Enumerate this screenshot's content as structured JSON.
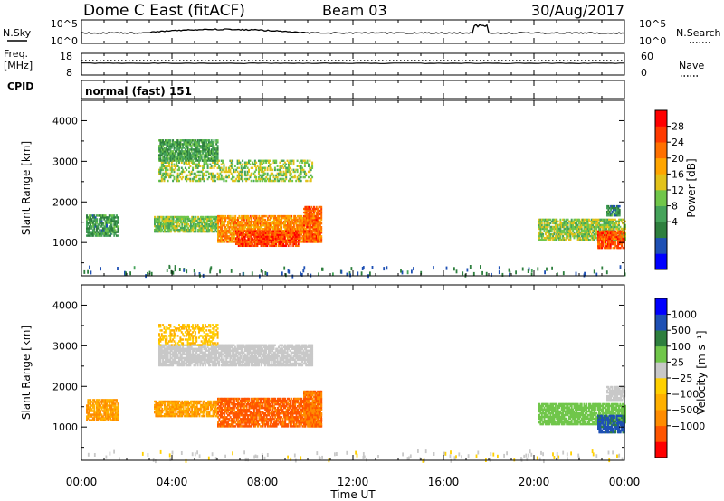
{
  "header": {
    "radar": "Dome C East (fitACF)",
    "beam": "Beam 03",
    "date": "30/Aug/2017"
  },
  "ancillary": {
    "nsky_label": "N.Sky",
    "nsky_ticks": [
      "10^5",
      "10^0"
    ],
    "nsearch_label": "N.Search",
    "nsearch_ticks": [
      "10^5",
      "10^0"
    ],
    "freq_label_1": "Freq.",
    "freq_label_2": "[MHz]",
    "freq_ticks": [
      "18",
      "8"
    ],
    "nave_label": "Nave",
    "nave_ticks": [
      "60",
      "0"
    ],
    "cpid_label": "CPID",
    "cpid_value": "normal (fast) 151"
  },
  "colors": {
    "power_scale": [
      "#0000ff",
      "#1e50b4",
      "#2e7f3e",
      "#45a35a",
      "#70c64a",
      "#e2c21a",
      "#ffa500",
      "#ff7000",
      "#ff3a00",
      "#ff0000"
    ],
    "velocity_scale": [
      "#ff0000",
      "#ff5500",
      "#ff8c00",
      "#ffb000",
      "#ffd000",
      "#c8c8c8",
      "#70c64a",
      "#2e7f3e",
      "#1e50b4",
      "#0000ff"
    ]
  },
  "chart_data": [
    {
      "type": "heatmap",
      "panel": "power",
      "ylabel": "Slant Range [km]",
      "yticks": [
        "4000",
        "3000",
        "2000",
        "1000"
      ],
      "ylim": [
        180,
        4500
      ],
      "colorbar_label": "Power [dB]",
      "colorbar_ticks": [
        "28",
        "24",
        "20",
        "16",
        "12",
        "8",
        "4"
      ],
      "colorbar_range": [
        0,
        32
      ],
      "regions": [
        {
          "t0": 0.2,
          "t1": 1.6,
          "r0": 1150,
          "r1": 1650,
          "value": 10
        },
        {
          "t0": 3.2,
          "t1": 6.0,
          "r0": 1250,
          "r1": 1650,
          "value": 14
        },
        {
          "t0": 6.0,
          "t1": 10.4,
          "r0": 1000,
          "r1": 1650,
          "value": 22
        },
        {
          "t0": 6.8,
          "t1": 9.6,
          "r0": 900,
          "r1": 1300,
          "value": 27
        },
        {
          "t0": 9.8,
          "t1": 10.6,
          "r0": 1000,
          "r1": 1900,
          "value": 25
        },
        {
          "t0": 3.4,
          "t1": 10.2,
          "r0": 2500,
          "r1": 3000,
          "value": 15
        },
        {
          "t0": 3.4,
          "t1": 6.0,
          "r0": 3000,
          "r1": 3500,
          "value": 11
        },
        {
          "t0": 20.2,
          "t1": 24.0,
          "r0": 1050,
          "r1": 1550,
          "value": 15
        },
        {
          "t0": 22.8,
          "t1": 24.0,
          "r0": 850,
          "r1": 1300,
          "value": 26
        },
        {
          "t0": 23.2,
          "t1": 23.8,
          "r0": 1650,
          "r1": 1900,
          "value": 9
        }
      ]
    },
    {
      "type": "heatmap",
      "panel": "velocity",
      "ylabel": "Slant Range [km]",
      "yticks": [
        "4000",
        "3000",
        "2000",
        "1000"
      ],
      "ylim": [
        180,
        4500
      ],
      "colorbar_label": "Velocity [m s⁻¹]",
      "colorbar_ticks": [
        "1000",
        "500",
        "100",
        "25",
        "−25",
        "−100",
        "−500",
        "−1000"
      ],
      "regions": [
        {
          "t0": 0.2,
          "t1": 1.6,
          "r0": 1150,
          "r1": 1650,
          "value": -100
        },
        {
          "t0": 3.2,
          "t1": 6.0,
          "r0": 1250,
          "r1": 1650,
          "value": -100
        },
        {
          "t0": 6.0,
          "t1": 10.6,
          "r0": 1000,
          "r1": 1700,
          "value": -300
        },
        {
          "t0": 9.8,
          "t1": 10.6,
          "r0": 1000,
          "r1": 1900,
          "value": -250
        },
        {
          "t0": 3.4,
          "t1": 10.2,
          "r0": 2500,
          "r1": 3000,
          "value": 10
        },
        {
          "t0": 3.4,
          "t1": 6.0,
          "r0": 3000,
          "r1": 3500,
          "value": -50
        },
        {
          "t0": 20.2,
          "t1": 24.0,
          "r0": 1050,
          "r1": 1550,
          "value": 60
        },
        {
          "t0": 22.8,
          "t1": 24.0,
          "r0": 850,
          "r1": 1300,
          "value": 300
        },
        {
          "t0": 23.2,
          "t1": 24.0,
          "r0": 1650,
          "r1": 2000,
          "value": 0
        }
      ]
    }
  ],
  "time_axis": {
    "xlabel": "Time UT",
    "ticks": [
      "00:00",
      "04:00",
      "08:00",
      "12:00",
      "16:00",
      "20:00",
      "00:00"
    ],
    "range_hours": [
      0,
      24
    ]
  }
}
